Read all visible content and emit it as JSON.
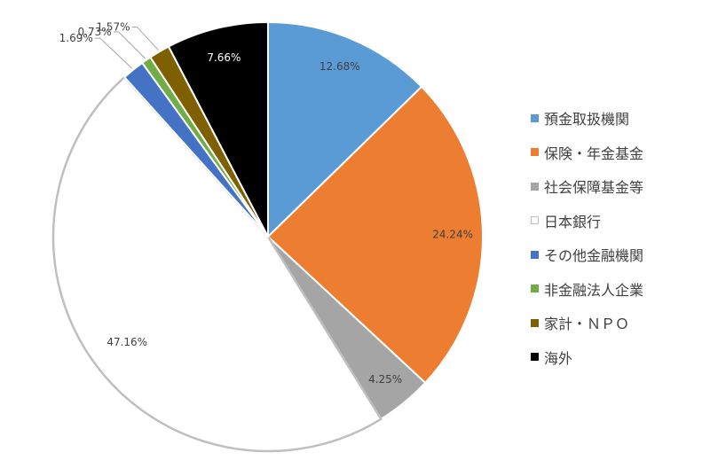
{
  "chart_data": {
    "type": "pie",
    "start_angle_deg": 0,
    "direction": "clockwise",
    "legend_position": "right",
    "slices": [
      {
        "name": "預金取扱機関",
        "value": 12.68,
        "label": "12.68%",
        "color": "#5B9BD5",
        "stroke": "#ffffff"
      },
      {
        "name": "保険・年金基金",
        "value": 24.24,
        "label": "24.24%",
        "color": "#ED7D31",
        "stroke": "#ffffff"
      },
      {
        "name": "社会保障基金等",
        "value": 4.25,
        "label": "4.25%",
        "color": "#A5A5A5",
        "stroke": "#ffffff"
      },
      {
        "name": "日本銀行",
        "value": 47.16,
        "label": "47.16%",
        "color": "#FFFFFF",
        "stroke": "#BFBFBF"
      },
      {
        "name": "その他金融機関",
        "value": 1.69,
        "label": "1.69%",
        "color": "#4472C4",
        "stroke": "#ffffff"
      },
      {
        "name": "非金融法人企業",
        "value": 0.73,
        "label": "0.73%",
        "color": "#70AD47",
        "stroke": "#ffffff"
      },
      {
        "name": "家計・ＮＰＯ",
        "value": 1.57,
        "label": "1.57%",
        "color": "#7F6000",
        "stroke": "#ffffff"
      },
      {
        "name": "海外",
        "value": 7.66,
        "label": "7.66%",
        "color": "#000000",
        "stroke": "#ffffff"
      }
    ]
  }
}
